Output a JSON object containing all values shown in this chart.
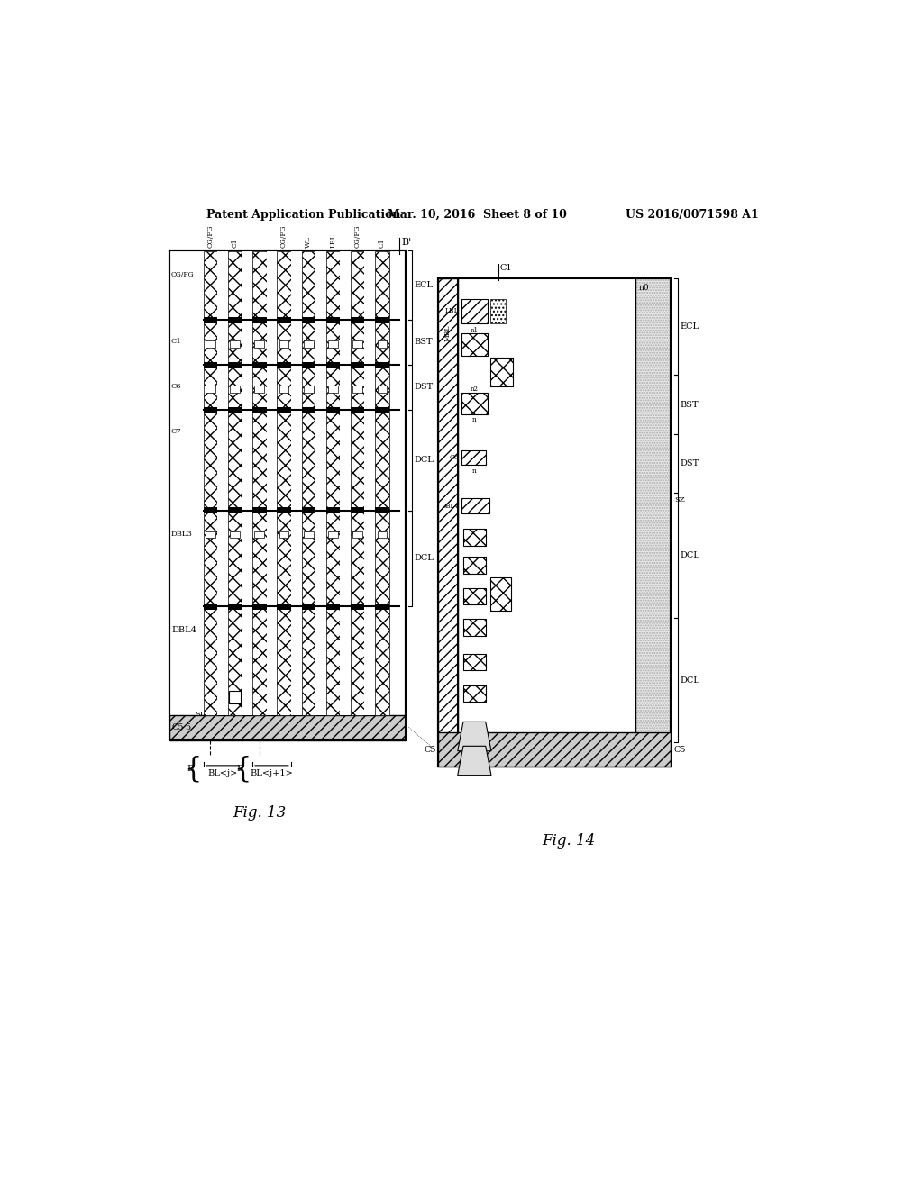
{
  "bg_color": "#ffffff",
  "header_left": "Patent Application Publication",
  "header_mid": "Mar. 10, 2016  Sheet 8 of 10",
  "header_right": "US 2016/0071598 A1",
  "fig13_label": "Fig. 13",
  "fig14_label": "Fig. 14",
  "line_color": "#000000"
}
